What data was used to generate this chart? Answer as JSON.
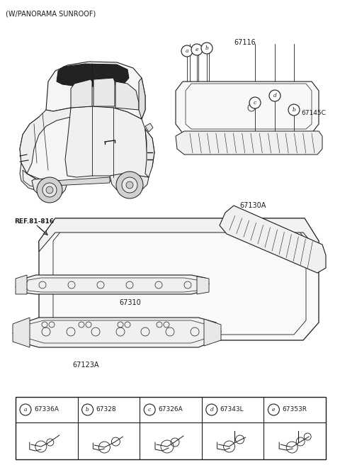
{
  "title": "(W/PANORAMA SUNROOF)",
  "bg_color": "#ffffff",
  "line_color": "#1a1a1a",
  "figsize": [
    4.8,
    6.56
  ],
  "dpi": 100,
  "legend_items": [
    {
      "letter": "a",
      "code": "67336A"
    },
    {
      "letter": "b",
      "code": "67328"
    },
    {
      "letter": "c",
      "code": "67326A"
    },
    {
      "letter": "d",
      "code": "67343L"
    },
    {
      "letter": "e",
      "code": "67353R"
    }
  ]
}
